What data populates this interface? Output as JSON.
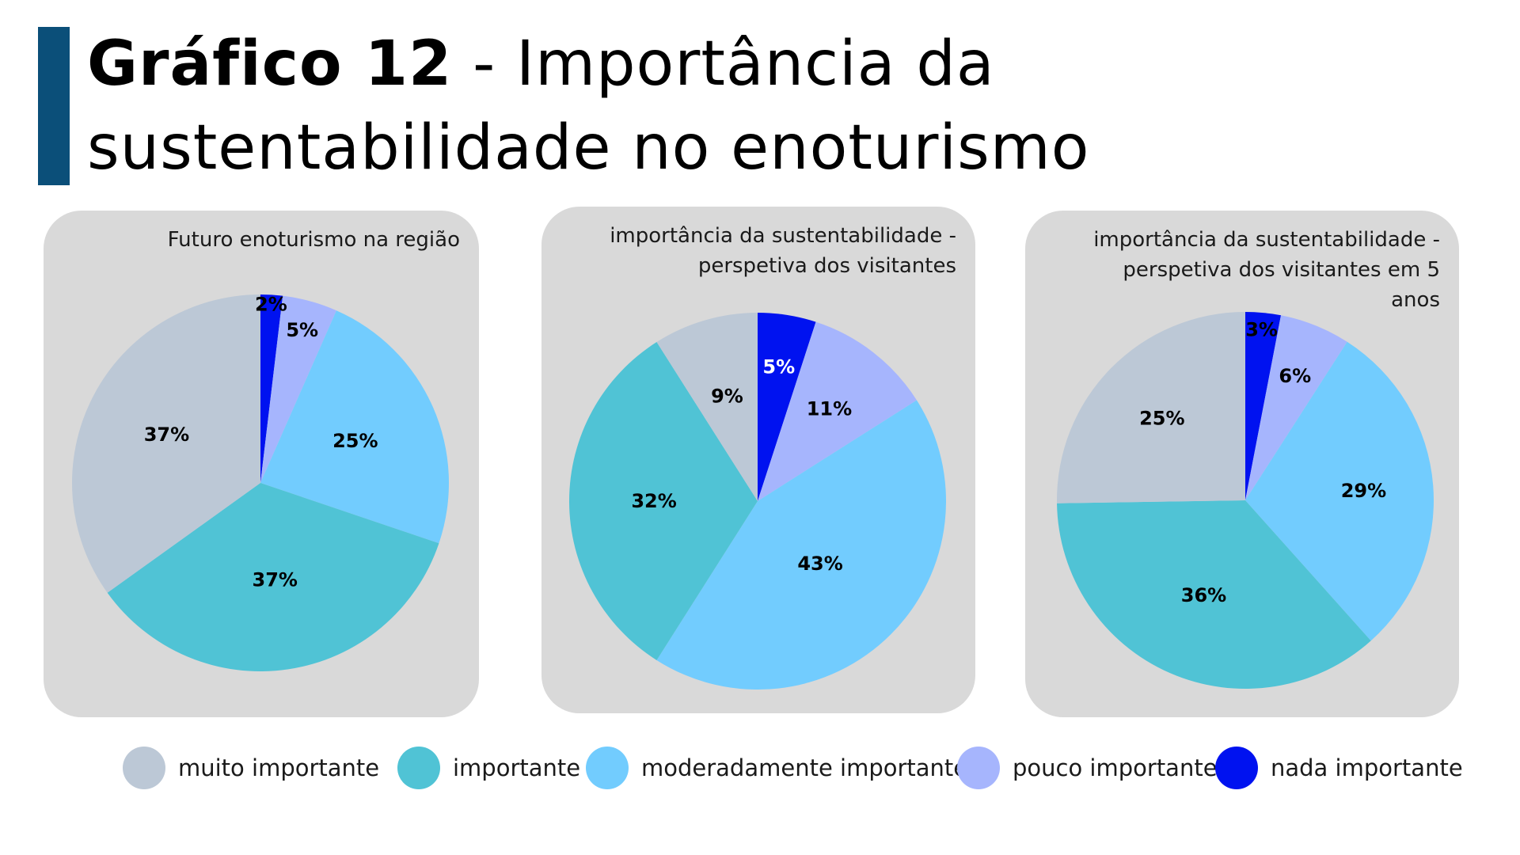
{
  "title": {
    "bold": "Gráfico 12",
    "rest": " - Importância da sustentabilidade no enoturismo"
  },
  "colors": {
    "muito importante": "#bcc8d6",
    "importante": "#50c3d5",
    "moderadamente importante": "#72ccfe",
    "pouco importante": "#a6b5fd",
    "nada importante": "#0012f0"
  },
  "legend": [
    {
      "label": "muito importante",
      "color": "#bcc8d6"
    },
    {
      "label": "importante",
      "color": "#50c3d5"
    },
    {
      "label": "moderadamente importante",
      "color": "#72ccfe"
    },
    {
      "label": "pouco importante",
      "color": "#a6b5fd"
    },
    {
      "label": "nada importante",
      "color": "#0012f0"
    }
  ],
  "chart_data": [
    {
      "type": "pie",
      "title": "Futuro enoturismo na região",
      "categories": [
        "nada importante",
        "pouco importante",
        "moderadamente importante",
        "importante",
        "muito importante"
      ],
      "values": [
        2,
        5,
        25,
        37,
        37
      ],
      "labels": [
        "2%",
        "5%",
        "25%",
        "37%",
        "37%"
      ]
    },
    {
      "type": "pie",
      "title": "importância da sustentabilidade - perspetiva dos visitantes",
      "categories": [
        "nada importante",
        "pouco importante",
        "moderadamente importante",
        "importante",
        "muito importante"
      ],
      "values": [
        5,
        11,
        43,
        32,
        9
      ],
      "labels": [
        "5%",
        "11%",
        "43%",
        "32%",
        "9%"
      ]
    },
    {
      "type": "pie",
      "title": "importância da sustentabilidade - perspetiva dos visitantes em 5 anos",
      "categories": [
        "nada importante",
        "pouco importante",
        "moderadamente importante",
        "importante",
        "muito importante"
      ],
      "values": [
        3,
        6,
        29,
        36,
        25
      ],
      "labels": [
        "3%",
        "6%",
        "29%",
        "36%",
        "25%"
      ]
    }
  ]
}
